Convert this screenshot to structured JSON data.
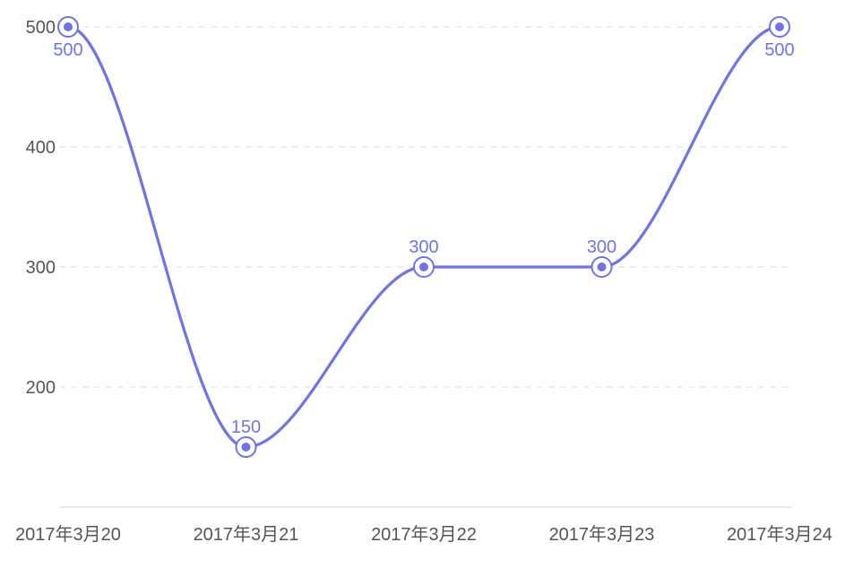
{
  "chart_data": {
    "type": "line",
    "title": "",
    "xlabel": "",
    "ylabel": "",
    "categories": [
      "2017年3月20",
      "2017年3月21",
      "2017年3月22",
      "2017年3月23",
      "2017年3月24"
    ],
    "series": [
      {
        "values": [
          500,
          150,
          300,
          300,
          500
        ],
        "color": "#7073e8"
      }
    ],
    "y_ticks": [
      200,
      300,
      400,
      500
    ],
    "ylim": [
      100,
      500
    ],
    "grid": true,
    "smooth": true,
    "show_data_labels": true
  },
  "colors": {
    "line": "#7073e8",
    "grid": "#e3e3e3",
    "axis": "#e3e3e3",
    "tick_text": "#555555"
  }
}
